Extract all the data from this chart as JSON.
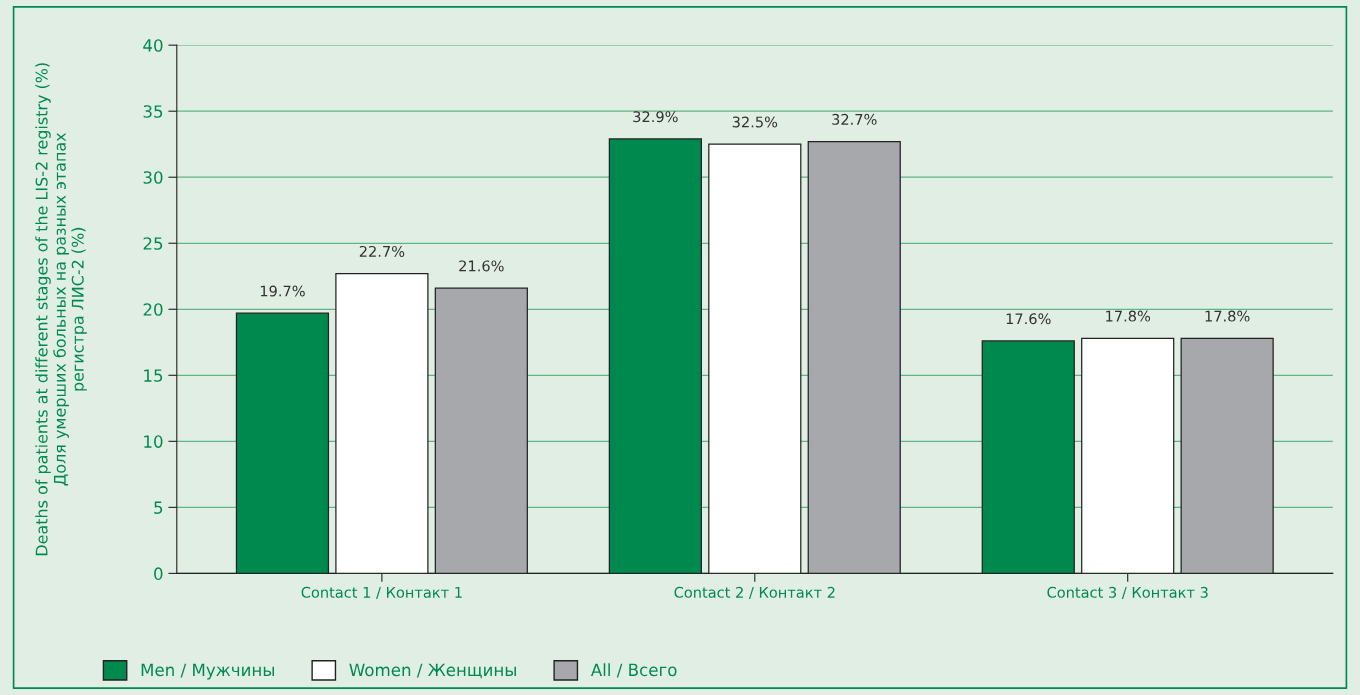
{
  "chart_data": {
    "type": "bar",
    "ylabel": "Deaths of patients at different stages of the LIS-2 registry (%)\nДоля умерших больных на разных этапах\nрегистра ЛИС-2 (%)",
    "categories": [
      "Contact 1 / Контакт 1",
      "Contact 2 / Контакт 2",
      "Contact 3 / Контакт 3"
    ],
    "series": [
      {
        "name": "Men / Мужчины",
        "color": "#00894f",
        "values": [
          19.7,
          32.9,
          17.6
        ],
        "value_labels": [
          "19.7%",
          "32.9%",
          "17.6%"
        ]
      },
      {
        "name": "Women / Женщины",
        "color": "#ffffff",
        "values": [
          22.7,
          32.5,
          17.8
        ],
        "value_labels": [
          "22.7%",
          "32.5%",
          "17.8%"
        ]
      },
      {
        "name": "All / Всего",
        "color": "#a7a8ab",
        "values": [
          21.6,
          32.7,
          17.8
        ],
        "value_labels": [
          "21.6%",
          "32.7%",
          "17.8%"
        ]
      }
    ],
    "ylim": [
      0,
      40
    ],
    "yticks": [
      0,
      5,
      10,
      15,
      20,
      25,
      30,
      35,
      40
    ],
    "grid": "y",
    "legend": "bottom left"
  }
}
